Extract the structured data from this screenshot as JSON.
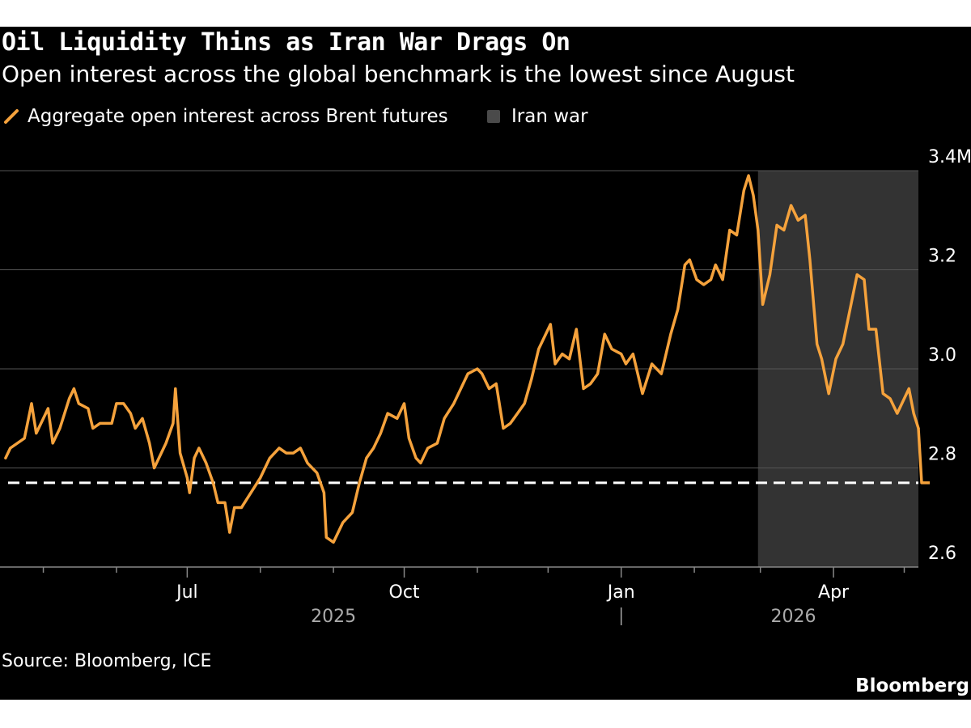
{
  "title": "Oil Liquidity Thins as Iran War Drags On",
  "subtitle": "Open interest across the global benchmark is the lowest since August",
  "legend": {
    "series_label": "Aggregate open interest across Brent futures",
    "shade_label": "Iran war"
  },
  "source": "Source: Bloomberg, ICE",
  "brand": "Bloomberg",
  "colors": {
    "line": "#f5a23c",
    "shade": "#333333",
    "grid": "#555555",
    "reference": "#ffffff"
  },
  "chart_data": {
    "type": "line",
    "title": "Oil Liquidity Thins as Iran War Drags On",
    "ylim": [
      2.6,
      3.4
    ],
    "yticks": [
      {
        "value": 2.6,
        "label": "2.6"
      },
      {
        "value": 2.8,
        "label": "2.8"
      },
      {
        "value": 3.0,
        "label": "3.0"
      },
      {
        "value": 3.2,
        "label": "3.2"
      },
      {
        "value": 3.4,
        "label": "3.4M"
      }
    ],
    "xlim": [
      "2025-04-14",
      "2026-05-07"
    ],
    "xticks": [
      {
        "date": "2025-07-01",
        "label": "Jul"
      },
      {
        "date": "2025-10-01",
        "label": "Oct"
      },
      {
        "date": "2026-01-01",
        "label": "Jan"
      },
      {
        "date": "2026-04-01",
        "label": "Apr"
      }
    ],
    "minor_ticks": [
      "2025-05-01",
      "2025-06-01",
      "2025-08-01",
      "2025-09-01",
      "2025-11-01",
      "2025-12-01",
      "2026-02-01",
      "2026-03-01",
      "2026-05-01"
    ],
    "year_labels": [
      {
        "label": "2025",
        "date": "2025-09-01"
      },
      {
        "label": "2026",
        "date": "2026-03-15"
      }
    ],
    "year_divider": "2026-01-01",
    "shaded_region": {
      "name": "Iran war",
      "start": "2026-02-28",
      "end": "2026-05-07"
    },
    "reference_line": {
      "value": 2.77,
      "style": "dashed"
    },
    "series": [
      {
        "name": "Aggregate open interest across Brent futures",
        "points": [
          [
            "2025-04-15",
            2.82
          ],
          [
            "2025-04-17",
            2.84
          ],
          [
            "2025-04-23",
            2.86
          ],
          [
            "2025-04-26",
            2.93
          ],
          [
            "2025-04-28",
            2.87
          ],
          [
            "2025-05-01",
            2.9
          ],
          [
            "2025-05-03",
            2.92
          ],
          [
            "2025-05-05",
            2.85
          ],
          [
            "2025-05-08",
            2.88
          ],
          [
            "2025-05-12",
            2.94
          ],
          [
            "2025-05-14",
            2.96
          ],
          [
            "2025-05-16",
            2.93
          ],
          [
            "2025-05-20",
            2.92
          ],
          [
            "2025-05-22",
            2.88
          ],
          [
            "2025-05-25",
            2.89
          ],
          [
            "2025-05-30",
            2.89
          ],
          [
            "2025-06-01",
            2.93
          ],
          [
            "2025-06-04",
            2.93
          ],
          [
            "2025-06-07",
            2.91
          ],
          [
            "2025-06-09",
            2.88
          ],
          [
            "2025-06-12",
            2.9
          ],
          [
            "2025-06-15",
            2.85
          ],
          [
            "2025-06-17",
            2.8
          ],
          [
            "2025-06-19",
            2.82
          ],
          [
            "2025-06-22",
            2.85
          ],
          [
            "2025-06-25",
            2.89
          ],
          [
            "2025-06-26",
            2.96
          ],
          [
            "2025-06-28",
            2.83
          ],
          [
            "2025-07-01",
            2.78
          ],
          [
            "2025-07-02",
            2.75
          ],
          [
            "2025-07-04",
            2.82
          ],
          [
            "2025-07-06",
            2.84
          ],
          [
            "2025-07-09",
            2.81
          ],
          [
            "2025-07-12",
            2.77
          ],
          [
            "2025-07-14",
            2.73
          ],
          [
            "2025-07-17",
            2.73
          ],
          [
            "2025-07-19",
            2.67
          ],
          [
            "2025-07-21",
            2.72
          ],
          [
            "2025-07-24",
            2.72
          ],
          [
            "2025-07-28",
            2.75
          ],
          [
            "2025-08-01",
            2.78
          ],
          [
            "2025-08-05",
            2.82
          ],
          [
            "2025-08-09",
            2.84
          ],
          [
            "2025-08-12",
            2.83
          ],
          [
            "2025-08-15",
            2.83
          ],
          [
            "2025-08-18",
            2.84
          ],
          [
            "2025-08-21",
            2.81
          ],
          [
            "2025-08-25",
            2.79
          ],
          [
            "2025-08-28",
            2.75
          ],
          [
            "2025-08-29",
            2.66
          ],
          [
            "2025-09-01",
            2.65
          ],
          [
            "2025-09-05",
            2.69
          ],
          [
            "2025-09-09",
            2.71
          ],
          [
            "2025-09-12",
            2.77
          ],
          [
            "2025-09-15",
            2.82
          ],
          [
            "2025-09-18",
            2.84
          ],
          [
            "2025-09-21",
            2.87
          ],
          [
            "2025-09-24",
            2.91
          ],
          [
            "2025-09-28",
            2.9
          ],
          [
            "2025-10-01",
            2.93
          ],
          [
            "2025-10-03",
            2.86
          ],
          [
            "2025-10-06",
            2.82
          ],
          [
            "2025-10-08",
            2.81
          ],
          [
            "2025-10-11",
            2.84
          ],
          [
            "2025-10-15",
            2.85
          ],
          [
            "2025-10-18",
            2.9
          ],
          [
            "2025-10-22",
            2.93
          ],
          [
            "2025-10-25",
            2.96
          ],
          [
            "2025-10-28",
            2.99
          ],
          [
            "2025-11-01",
            3.0
          ],
          [
            "2025-11-03",
            2.99
          ],
          [
            "2025-11-06",
            2.96
          ],
          [
            "2025-11-09",
            2.97
          ],
          [
            "2025-11-12",
            2.88
          ],
          [
            "2025-11-15",
            2.89
          ],
          [
            "2025-11-18",
            2.91
          ],
          [
            "2025-11-21",
            2.93
          ],
          [
            "2025-11-24",
            2.98
          ],
          [
            "2025-11-27",
            3.04
          ],
          [
            "2025-12-02",
            3.09
          ],
          [
            "2025-12-04",
            3.01
          ],
          [
            "2025-12-07",
            3.03
          ],
          [
            "2025-12-10",
            3.02
          ],
          [
            "2025-12-13",
            3.08
          ],
          [
            "2025-12-16",
            2.96
          ],
          [
            "2025-12-19",
            2.97
          ],
          [
            "2025-12-22",
            2.99
          ],
          [
            "2025-12-25",
            3.07
          ],
          [
            "2025-12-28",
            3.04
          ],
          [
            "2026-01-01",
            3.03
          ],
          [
            "2026-01-03",
            3.01
          ],
          [
            "2026-01-06",
            3.03
          ],
          [
            "2026-01-10",
            2.95
          ],
          [
            "2026-01-14",
            3.01
          ],
          [
            "2026-01-18",
            2.99
          ],
          [
            "2026-01-22",
            3.07
          ],
          [
            "2026-01-25",
            3.12
          ],
          [
            "2026-01-28",
            3.21
          ],
          [
            "2026-01-30",
            3.22
          ],
          [
            "2026-02-02",
            3.18
          ],
          [
            "2026-02-05",
            3.17
          ],
          [
            "2026-02-08",
            3.18
          ],
          [
            "2026-02-10",
            3.21
          ],
          [
            "2026-02-13",
            3.18
          ],
          [
            "2026-02-16",
            3.28
          ],
          [
            "2026-02-19",
            3.27
          ],
          [
            "2026-02-22",
            3.36
          ],
          [
            "2026-02-24",
            3.39
          ],
          [
            "2026-02-26",
            3.35
          ],
          [
            "2026-02-28",
            3.28
          ],
          [
            "2026-03-02",
            3.13
          ],
          [
            "2026-03-05",
            3.19
          ],
          [
            "2026-03-08",
            3.29
          ],
          [
            "2026-03-11",
            3.28
          ],
          [
            "2026-03-14",
            3.33
          ],
          [
            "2026-03-17",
            3.3
          ],
          [
            "2026-03-20",
            3.31
          ],
          [
            "2026-03-22",
            3.22
          ],
          [
            "2026-03-25",
            3.05
          ],
          [
            "2026-03-27",
            3.02
          ],
          [
            "2026-03-30",
            2.95
          ],
          [
            "2026-04-02",
            3.02
          ],
          [
            "2026-04-05",
            3.05
          ],
          [
            "2026-04-08",
            3.12
          ],
          [
            "2026-04-11",
            3.19
          ],
          [
            "2026-04-14",
            3.18
          ],
          [
            "2026-04-16",
            3.08
          ],
          [
            "2026-04-19",
            3.08
          ],
          [
            "2026-04-22",
            2.95
          ],
          [
            "2026-04-25",
            2.94
          ],
          [
            "2026-04-28",
            2.91
          ],
          [
            "2026-05-01",
            2.94
          ],
          [
            "2026-05-03",
            2.96
          ],
          [
            "2026-05-05",
            2.91
          ],
          [
            "2026-05-07",
            2.88
          ]
        ]
      }
    ]
  }
}
